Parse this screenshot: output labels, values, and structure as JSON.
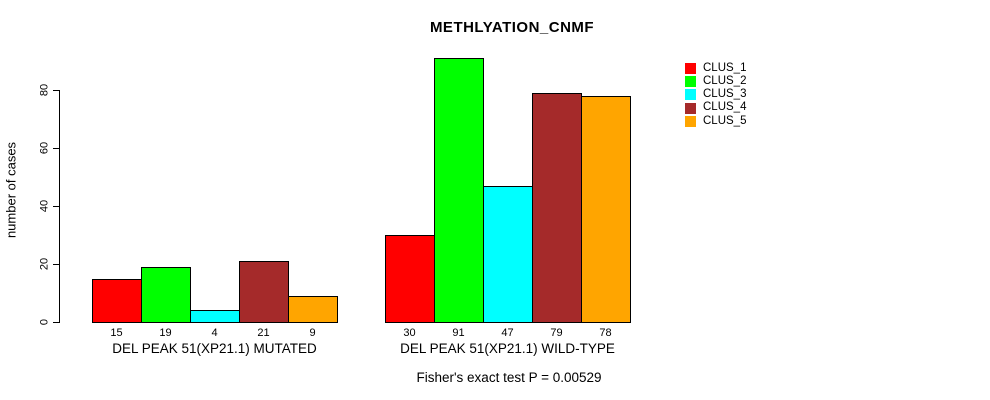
{
  "title": "METHLYATION_CNMF",
  "caption": "Fisher's exact test P = 0.00529",
  "y_axis": {
    "label": "number of cases",
    "ticks": [
      0,
      20,
      40,
      60,
      80
    ]
  },
  "chart_data": {
    "type": "bar",
    "title": "METHLYATION_CNMF",
    "xlabel": "",
    "ylabel": "number of cases",
    "ylim": [
      0,
      80
    ],
    "grid": false,
    "legend_position": "right-outside",
    "categories": [
      "DEL PEAK 51(XP21.1) MUTATED",
      "DEL PEAK 51(XP21.1) WILD-TYPE"
    ],
    "series": [
      {
        "name": "CLUS_1",
        "color": "#FF0000",
        "values": [
          15,
          30
        ]
      },
      {
        "name": "CLUS_2",
        "color": "#00FF00",
        "values": [
          19,
          91
        ]
      },
      {
        "name": "CLUS_3",
        "color": "#00FFFF",
        "values": [
          4,
          47
        ]
      },
      {
        "name": "CLUS_4",
        "color": "#A52A2A",
        "values": [
          21,
          79
        ]
      },
      {
        "name": "CLUS_5",
        "color": "#FFA500",
        "values": [
          9,
          78
        ]
      }
    ],
    "bar_value_labels": true,
    "annotation": "Fisher's exact test P = 0.00529"
  }
}
